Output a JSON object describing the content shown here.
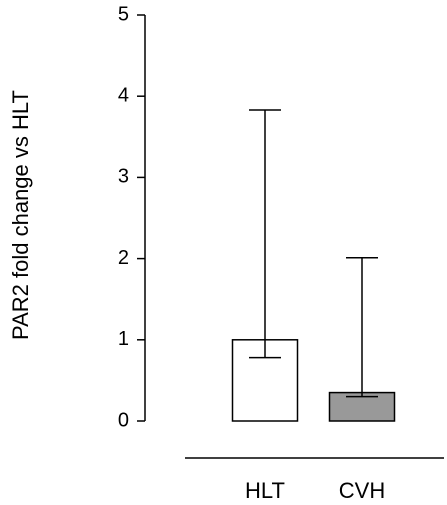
{
  "chart_data": {
    "type": "bar",
    "y_label": "PAR2 fold change vs HLT",
    "categories": [
      "HLT",
      "CVH"
    ],
    "values": [
      1.0,
      0.35
    ],
    "error_minus": [
      0.22,
      0.05
    ],
    "error_plus": [
      2.83,
      1.66
    ],
    "colors": [
      "#ffffff",
      "#999999"
    ],
    "ylim": [
      0,
      5
    ],
    "yticks": [
      0,
      1,
      2,
      3,
      4,
      5
    ]
  }
}
